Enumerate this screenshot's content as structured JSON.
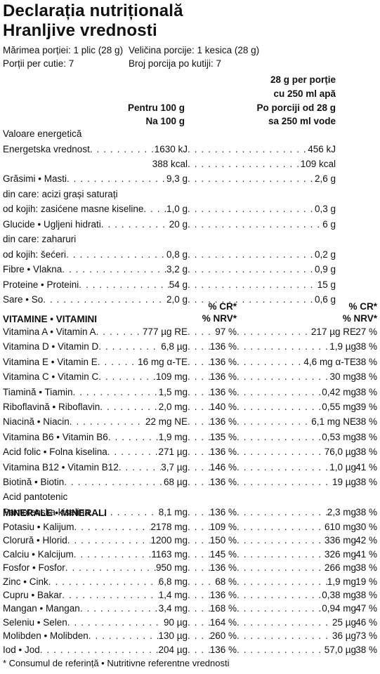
{
  "title": {
    "ro": "Declarația nutrițională",
    "hr": "Hranljive vrednosti"
  },
  "serving": {
    "size_ro": "Mărimea porției: 1 plic (28 g)",
    "size_hr": "Veličina porcije: 1 kesica (28 g)",
    "count_ro": "Porții per cutie: 7",
    "count_hr": "Broj porcija po kutiji: 7"
  },
  "headers": {
    "per100": [
      "Pentru 100 g",
      "Na 100 g"
    ],
    "perServing": [
      "28 g per porție",
      "cu 250 ml apă",
      "Po porciji od 28 g",
      "sa 250 ml vode"
    ]
  },
  "energy_label": [
    "Valoare energetică",
    "Energetska vrednost"
  ],
  "energy_kj": {
    "per100": "1630 kJ",
    "serving": "456 kJ"
  },
  "energy_kcal": {
    "per100": "388 kcal",
    "serving": "109 kcal"
  },
  "macros": [
    {
      "name": "Grăsimi • Masti",
      "per100": "9,3 g",
      "serving": "2,6 g"
    },
    {
      "name": "din care: acizi grași saturați",
      "per100": "",
      "serving": ""
    },
    {
      "name": "od kojih: zasićene masne kiseline",
      "per100": "1,0 g",
      "serving": "0,3 g"
    },
    {
      "name": "Glucide • Ugljeni hidrati",
      "per100": "20 g",
      "serving": "6 g"
    },
    {
      "name": "din care: zaharuri",
      "per100": "",
      "serving": ""
    },
    {
      "name": "od kojih: šećeri",
      "per100": "0,8 g",
      "serving": "0,2 g"
    },
    {
      "name": "Fibre • Vlakna",
      "per100": "3,2 g",
      "serving": "0,9 g"
    },
    {
      "name": "Proteine • Proteini",
      "per100": "54 g",
      "serving": "15 g"
    },
    {
      "name": "Sare • So",
      "per100": "2,0 g",
      "serving": "0,6 g"
    }
  ],
  "pct_header": {
    "line1": "% CR*",
    "line2": "% NRV*"
  },
  "vitamins_title": "VITAMINE • VITAMINI",
  "vitamins": [
    {
      "name": "Vitamina A • Vitamin A",
      "per100": "777 µg RE",
      "pct100": "97 %",
      "serving": "217 µg RE",
      "pctS": "27 %"
    },
    {
      "name": "Vitamina D • Vitamin D",
      "per100": "6,8 µg",
      "pct100": "136 %",
      "serving": "1,9 µg",
      "pctS": "38 %"
    },
    {
      "name": "Vitamina E • Vitamin E",
      "per100": "16 mg α-TE",
      "pct100": "136 %",
      "serving": "4,6 mg α-TE",
      "pctS": "38 %"
    },
    {
      "name": "Vitamina C • Vitamin C",
      "per100": "109 mg",
      "pct100": "136 %",
      "serving": "30 mg",
      "pctS": "38 %"
    },
    {
      "name": "Tiamină • Tiamin",
      "per100": "1,5 mg",
      "pct100": "136 %",
      "serving": "0,42 mg",
      "pctS": "38 %"
    },
    {
      "name": "Riboflavină • Riboflavin",
      "per100": "2,0 mg",
      "pct100": "140 %",
      "serving": "0,55 mg",
      "pctS": "39 %"
    },
    {
      "name": "Niacină • Niacin",
      "per100": "22 mg NE",
      "pct100": "136 %",
      "serving": "6,1 mg NE",
      "pctS": "38 %"
    },
    {
      "name": "Vitamina B6 • Vitamin B6",
      "per100": "1,9 mg",
      "pct100": "135 %",
      "serving": "0,53 mg",
      "pctS": "38 %"
    },
    {
      "name": "Acid folic • Folna kiselina",
      "per100": "271 µg",
      "pct100": "136 %",
      "serving": "76,0 µg",
      "pctS": "38 %"
    },
    {
      "name": "Vitamina B12 • Vitamin B12",
      "per100": "3,7 µg",
      "pct100": "146 %",
      "serving": "1,0 µg",
      "pctS": "41 %"
    },
    {
      "name": "Biotină • Biotin",
      "per100": "68 µg",
      "pct100": "136 %",
      "serving": "19 µg",
      "pctS": "38 %"
    },
    {
      "name": "Acid pantotenic",
      "per100": "",
      "pct100": "",
      "serving": "",
      "pctS": ""
    },
    {
      "name": "Pantotenska kiselina",
      "per100": "8,1 mg",
      "pct100": "136 %",
      "serving": "2,3 mg",
      "pctS": "38 %"
    }
  ],
  "minerals_title": "MINERALE • MINERALI",
  "minerals": [
    {
      "name": "Potasiu • Kalijum",
      "per100": "2178 mg",
      "pct100": "109 %",
      "serving": "610 mg",
      "pctS": "30 %"
    },
    {
      "name": "Clorură • Hlorid",
      "per100": "1200 mg",
      "pct100": "150 %",
      "serving": "336 mg",
      "pctS": "42 %"
    },
    {
      "name": "Calciu • Kalcijum",
      "per100": "1163 mg",
      "pct100": "145 %",
      "serving": "326 mg",
      "pctS": "41 %"
    },
    {
      "name": "Fosfor • Fosfor",
      "per100": "950 mg",
      "pct100": "136 %",
      "serving": "266 mg",
      "pctS": "38 %"
    },
    {
      "name": "Zinc • Cink",
      "per100": "6,8 mg",
      "pct100": "68 %",
      "serving": "1,9 mg",
      "pctS": "19 %"
    },
    {
      "name": "Cupru • Bakar",
      "per100": "1,4 mg",
      "pct100": "136 %",
      "serving": "0,38 mg",
      "pctS": "38 %"
    },
    {
      "name": "Mangan • Mangan",
      "per100": "3,4 mg",
      "pct100": "168 %",
      "serving": "0,94 mg",
      "pctS": "47 %"
    },
    {
      "name": "Seleniu • Selen",
      "per100": "90 µg",
      "pct100": "164 %",
      "serving": "25 µg",
      "pctS": "46 %"
    },
    {
      "name": "Molibden • Molibden",
      "per100": "130 µg",
      "pct100": "260 %",
      "serving": "36 µg",
      "pctS": "73 %"
    },
    {
      "name": "Iod • Jod",
      "per100": "204 µg",
      "pct100": "136 %",
      "serving": "57,0 µg",
      "pctS": "38 %"
    }
  ],
  "footnote": "* Consumul de referință • Nutritivne referentne vrednosti"
}
